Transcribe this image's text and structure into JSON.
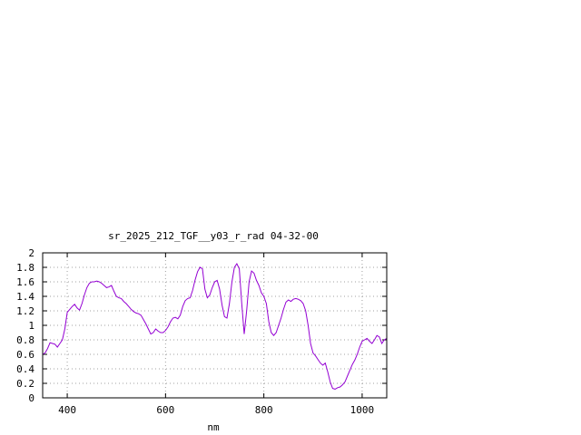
{
  "chart_data": {
    "type": "line",
    "title": "sr_2025_212_TGF__y03_r_rad 04-32-00",
    "xlabel": "nm",
    "ylabel": "",
    "xlim": [
      350,
      1050
    ],
    "ylim": [
      0,
      2
    ],
    "xticks": [
      400,
      600,
      800,
      1000
    ],
    "xtick_labels": [
      "400",
      "600",
      "800",
      "1000"
    ],
    "yticks": [
      0,
      0.2,
      0.4,
      0.6,
      0.8,
      1,
      1.2,
      1.4,
      1.6,
      1.8,
      2
    ],
    "ytick_labels": [
      "0",
      "0.2",
      "0.4",
      "0.6",
      "0.8",
      "1",
      "1.2",
      "1.4",
      "1.6",
      "1.8",
      "2"
    ],
    "grid": true,
    "legend": "none",
    "line_color": "#9400d3",
    "series": [
      {
        "x": [
          350,
          355,
          360,
          365,
          370,
          375,
          380,
          385,
          390,
          395,
          400,
          405,
          410,
          415,
          420,
          425,
          430,
          435,
          440,
          445,
          450,
          455,
          460,
          465,
          470,
          475,
          480,
          485,
          490,
          495,
          500,
          505,
          510,
          515,
          520,
          525,
          530,
          535,
          540,
          545,
          550,
          555,
          560,
          565,
          570,
          575,
          580,
          585,
          590,
          595,
          600,
          605,
          610,
          615,
          620,
          625,
          630,
          635,
          640,
          645,
          650,
          655,
          660,
          665,
          670,
          675,
          680,
          685,
          690,
          695,
          700,
          705,
          710,
          715,
          720,
          725,
          730,
          735,
          740,
          745,
          750,
          755,
          760,
          765,
          770,
          775,
          780,
          785,
          790,
          795,
          800,
          805,
          810,
          815,
          820,
          825,
          830,
          835,
          840,
          845,
          850,
          855,
          860,
          865,
          870,
          875,
          880,
          885,
          890,
          895,
          900,
          905,
          910,
          915,
          920,
          925,
          930,
          935,
          940,
          945,
          950,
          955,
          960,
          965,
          970,
          975,
          980,
          985,
          990,
          995,
          1000,
          1005,
          1010,
          1015,
          1020,
          1025,
          1030,
          1035,
          1040,
          1045,
          1050
        ],
        "y": [
          0.6,
          0.62,
          0.68,
          0.76,
          0.75,
          0.74,
          0.7,
          0.75,
          0.8,
          0.95,
          1.18,
          1.22,
          1.26,
          1.29,
          1.24,
          1.21,
          1.3,
          1.42,
          1.52,
          1.58,
          1.6,
          1.6,
          1.61,
          1.6,
          1.58,
          1.55,
          1.52,
          1.53,
          1.55,
          1.47,
          1.4,
          1.38,
          1.37,
          1.33,
          1.3,
          1.26,
          1.22,
          1.19,
          1.17,
          1.16,
          1.14,
          1.08,
          1.02,
          0.95,
          0.88,
          0.9,
          0.95,
          0.92,
          0.9,
          0.9,
          0.93,
          0.98,
          1.05,
          1.1,
          1.11,
          1.09,
          1.14,
          1.26,
          1.34,
          1.37,
          1.38,
          1.48,
          1.62,
          1.74,
          1.8,
          1.78,
          1.5,
          1.38,
          1.42,
          1.52,
          1.6,
          1.62,
          1.5,
          1.28,
          1.12,
          1.1,
          1.3,
          1.6,
          1.8,
          1.85,
          1.78,
          1.3,
          0.88,
          1.2,
          1.6,
          1.75,
          1.72,
          1.62,
          1.55,
          1.45,
          1.4,
          1.3,
          1.05,
          0.9,
          0.86,
          0.9,
          1.0,
          1.1,
          1.22,
          1.32,
          1.35,
          1.33,
          1.36,
          1.37,
          1.36,
          1.34,
          1.3,
          1.2,
          1.0,
          0.75,
          0.62,
          0.58,
          0.53,
          0.48,
          0.45,
          0.48,
          0.36,
          0.22,
          0.13,
          0.12,
          0.14,
          0.15,
          0.18,
          0.22,
          0.3,
          0.38,
          0.46,
          0.52,
          0.6,
          0.7,
          0.78,
          0.8,
          0.82,
          0.78,
          0.75,
          0.8,
          0.86,
          0.84,
          0.75,
          0.8,
          0.82
        ]
      }
    ]
  }
}
